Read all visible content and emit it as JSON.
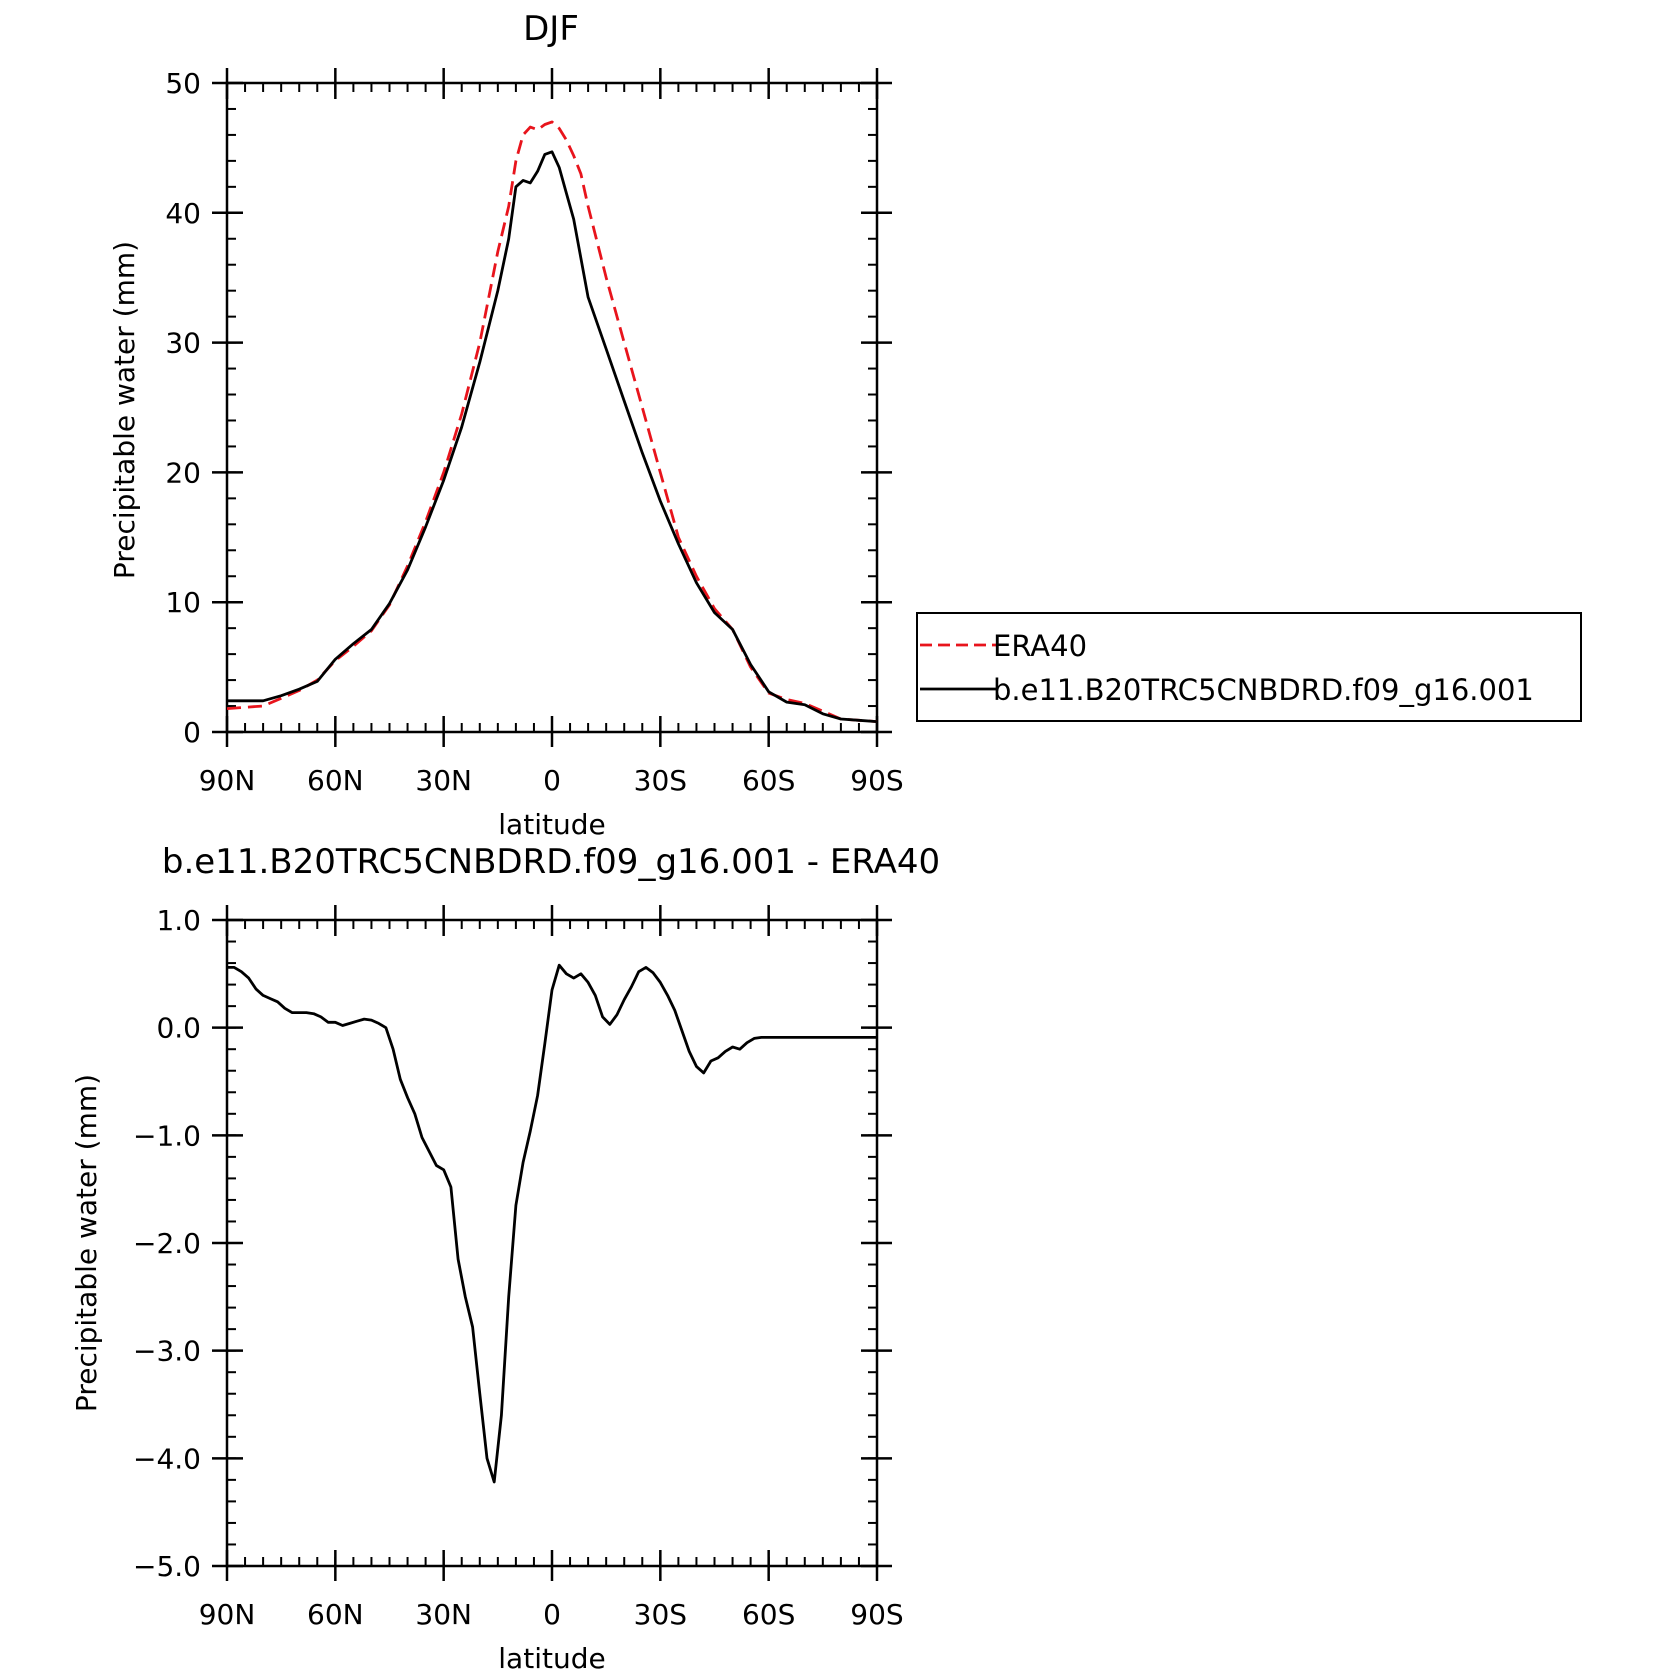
{
  "chart_data": [
    {
      "type": "line",
      "title": "DJF",
      "xlabel": "latitude",
      "ylabel": "Precipitable water (mm)",
      "xlim": [
        90,
        -90
      ],
      "ylim": [
        0,
        50
      ],
      "x_ticks": [
        {
          "value": 90,
          "label": "90N"
        },
        {
          "value": 60,
          "label": "60N"
        },
        {
          "value": 30,
          "label": "30N"
        },
        {
          "value": 0,
          "label": "0"
        },
        {
          "value": -30,
          "label": "30S"
        },
        {
          "value": -60,
          "label": "60S"
        },
        {
          "value": -90,
          "label": "90S"
        }
      ],
      "y_ticks": [
        {
          "value": 0,
          "label": "0"
        },
        {
          "value": 10,
          "label": "10"
        },
        {
          "value": 20,
          "label": "20"
        },
        {
          "value": 30,
          "label": "30"
        },
        {
          "value": 40,
          "label": "40"
        },
        {
          "value": 50,
          "label": "50"
        }
      ],
      "legend_position": "right",
      "series": [
        {
          "name": "ERA40",
          "color": "#e8141c",
          "dash": "dashed",
          "x": [
            90,
            80,
            75,
            70,
            65,
            60,
            55,
            50,
            45,
            40,
            35,
            30,
            25,
            20,
            15,
            12,
            10,
            8,
            6,
            4,
            2,
            0,
            -2,
            -4,
            -6,
            -8,
            -10,
            -15,
            -20,
            -25,
            -30,
            -35,
            -40,
            -45,
            -50,
            -55,
            -60,
            -65,
            -70,
            -75,
            -80,
            -85,
            -90
          ],
          "y": [
            1.8,
            2.0,
            2.6,
            3.2,
            4.0,
            5.5,
            6.6,
            7.8,
            9.8,
            12.8,
            16.2,
            20.0,
            24.5,
            30.0,
            37.0,
            40.5,
            44.0,
            46.0,
            46.6,
            46.4,
            46.8,
            47.0,
            46.5,
            45.6,
            44.4,
            43.0,
            40.5,
            35.0,
            30.0,
            25.0,
            20.0,
            15.0,
            12.0,
            9.5,
            7.9,
            5.0,
            3.0,
            2.5,
            2.2,
            1.6,
            1.0,
            0.9,
            0.8
          ]
        },
        {
          "name": "b.e11.B20TRC5CNBDRD.f09_g16.001",
          "color": "#000000",
          "dash": "solid",
          "x": [
            90,
            80,
            75,
            70,
            65,
            60,
            55,
            50,
            45,
            40,
            35,
            30,
            25,
            20,
            15,
            12,
            10,
            8,
            6,
            4,
            2,
            0,
            -2,
            -4,
            -6,
            -8,
            -10,
            -15,
            -20,
            -25,
            -30,
            -35,
            -40,
            -45,
            -50,
            -55,
            -60,
            -65,
            -70,
            -75,
            -80,
            -85,
            -90
          ],
          "y": [
            2.4,
            2.4,
            2.8,
            3.3,
            3.9,
            5.6,
            6.8,
            7.9,
            9.9,
            12.5,
            15.8,
            19.4,
            23.5,
            28.5,
            34.0,
            38.0,
            42.0,
            42.5,
            42.3,
            43.2,
            44.5,
            44.7,
            43.5,
            41.5,
            39.5,
            36.5,
            33.5,
            29.5,
            25.5,
            21.5,
            17.8,
            14.5,
            11.5,
            9.2,
            7.9,
            5.2,
            3.1,
            2.3,
            2.1,
            1.4,
            1.0,
            0.9,
            0.8
          ]
        }
      ]
    },
    {
      "type": "line",
      "title": "b.e11.B20TRC5CNBDRD.f09_g16.001 - ERA40",
      "xlabel": "latitude",
      "ylabel": "Precipitable water (mm)",
      "xlim": [
        90,
        -90
      ],
      "ylim": [
        -5,
        1
      ],
      "x_ticks": [
        {
          "value": 90,
          "label": "90N"
        },
        {
          "value": 60,
          "label": "60N"
        },
        {
          "value": 30,
          "label": "30N"
        },
        {
          "value": 0,
          "label": "0"
        },
        {
          "value": -30,
          "label": "30S"
        },
        {
          "value": -60,
          "label": "60S"
        },
        {
          "value": -90,
          "label": "90S"
        }
      ],
      "y_ticks": [
        {
          "value": 1,
          "label": "1.0"
        },
        {
          "value": 0,
          "label": "0.0"
        },
        {
          "value": -1,
          "label": "−1.0"
        },
        {
          "value": -2,
          "label": "−2.0"
        },
        {
          "value": -3,
          "label": "−3.0"
        },
        {
          "value": -4,
          "label": "−4.0"
        },
        {
          "value": -5,
          "label": "−5.0"
        }
      ],
      "series": [
        {
          "color": "#000000",
          "dash": "solid",
          "x": [
            90,
            88,
            86,
            84,
            82,
            80,
            78,
            76,
            74,
            72,
            70,
            68,
            66,
            64,
            62,
            60,
            58,
            56,
            54,
            52,
            50,
            48,
            46,
            44,
            42,
            40,
            38,
            36,
            34,
            32,
            30,
            28,
            26,
            24,
            22,
            20,
            18,
            16,
            14,
            12,
            10,
            8,
            6,
            4,
            2,
            0,
            -2,
            -4,
            -6,
            -8,
            -10,
            -12,
            -14,
            -16,
            -18,
            -20,
            -22,
            -24,
            -26,
            -28,
            -30,
            -32,
            -34,
            -36,
            -38,
            -40,
            -42,
            -44,
            -46,
            -48,
            -50,
            -52,
            -54,
            -56,
            -58,
            -60,
            -62,
            -64,
            -66,
            -68,
            -70,
            -72,
            -74,
            -76,
            -78,
            -80,
            -82,
            -84,
            -86,
            -88,
            -90
          ],
          "y": [
            0.56,
            0.56,
            0.52,
            0.46,
            0.36,
            0.3,
            0.27,
            0.24,
            0.18,
            0.14,
            0.14,
            0.14,
            0.13,
            0.1,
            0.05,
            0.05,
            0.02,
            0.04,
            0.06,
            0.08,
            0.07,
            0.04,
            0.0,
            -0.2,
            -0.48,
            -0.65,
            -0.8,
            -1.02,
            -1.15,
            -1.28,
            -1.32,
            -1.48,
            -2.15,
            -2.5,
            -2.78,
            -3.4,
            -4.0,
            -4.22,
            -3.6,
            -2.5,
            -1.65,
            -1.25,
            -0.96,
            -0.63,
            -0.15,
            0.35,
            0.58,
            0.5,
            0.46,
            0.5,
            0.42,
            0.3,
            0.1,
            0.03,
            0.12,
            0.26,
            0.38,
            0.52,
            0.56,
            0.51,
            0.42,
            0.3,
            0.16,
            -0.03,
            -0.22,
            -0.36,
            -0.42,
            -0.31,
            -0.28,
            -0.22,
            -0.18,
            -0.2,
            -0.14,
            -0.1,
            -0.09,
            -0.09,
            -0.09,
            -0.09,
            -0.09,
            -0.09,
            -0.09,
            -0.09,
            -0.09,
            -0.09,
            -0.09,
            -0.09,
            -0.09,
            -0.09,
            -0.09,
            -0.09,
            -0.09
          ]
        }
      ]
    }
  ]
}
